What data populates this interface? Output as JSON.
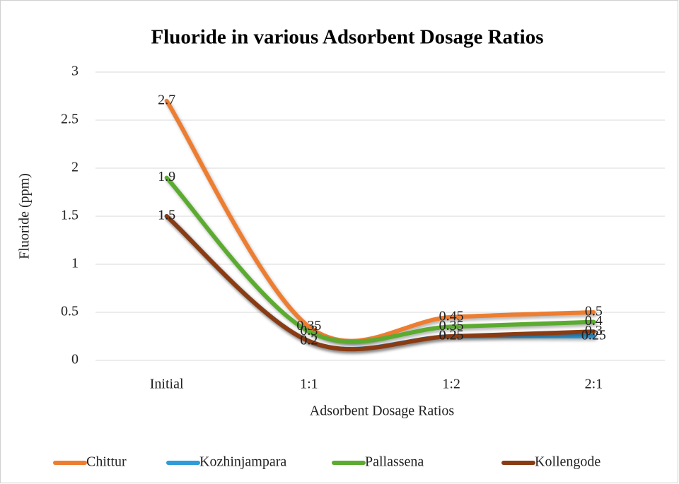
{
  "chart_data": {
    "type": "line",
    "title": "Fluoride in various Adsorbent Dosage Ratios",
    "x_label": "Adsorbent Dosage  Ratios",
    "y_label": "Fluoride (ppm)",
    "categories": [
      "Initial",
      "1:1",
      "1:2",
      "2:1"
    ],
    "series": [
      {
        "name": "Chittur",
        "color": "#ed7d31",
        "values": [
          2.7,
          0.35,
          0.45,
          0.5
        ]
      },
      {
        "name": "Kozhinjampara",
        "color": "#2f9bd8",
        "values": [
          1.5,
          0.2,
          0.25,
          0.25
        ]
      },
      {
        "name": "Pallassena",
        "color": "#5bab30",
        "values": [
          1.9,
          0.3,
          0.35,
          0.4
        ]
      },
      {
        "name": "Kollengode",
        "color": "#8a3b12",
        "values": [
          1.5,
          0.2,
          0.25,
          0.3
        ]
      }
    ],
    "ylim": [
      0,
      3
    ],
    "yticks": [
      0,
      0.5,
      1,
      1.5,
      2,
      2.5,
      3
    ],
    "grid": true,
    "smooth": true,
    "legend": "bottom"
  }
}
